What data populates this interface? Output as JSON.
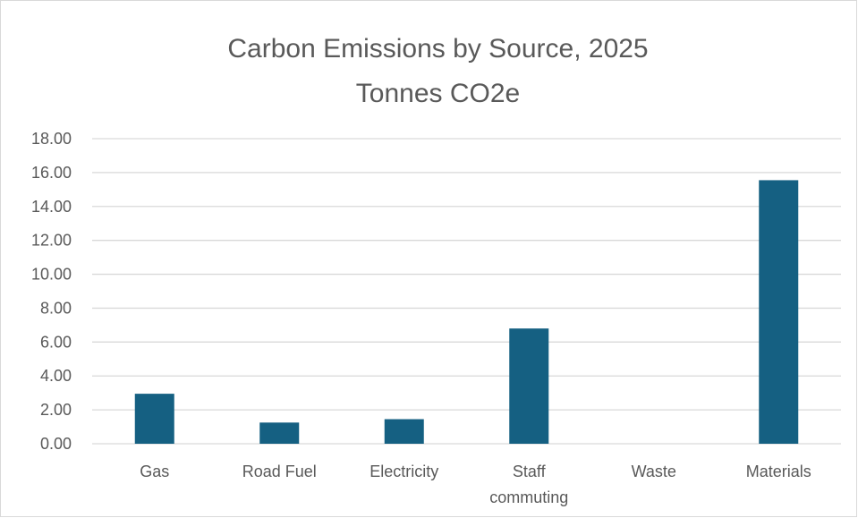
{
  "chart_data": {
    "type": "bar",
    "title": "Carbon Emissions by Source, 2025",
    "subtitle": "Tonnes CO2e",
    "categories": [
      "Gas",
      "Road Fuel",
      "Electricity",
      "Staff commuting",
      "Waste",
      "Materials"
    ],
    "category_lines": [
      [
        "Gas"
      ],
      [
        "Road Fuel"
      ],
      [
        "Electricity"
      ],
      [
        "Staff",
        "commuting"
      ],
      [
        "Waste"
      ],
      [
        "Materials"
      ]
    ],
    "values": [
      2.95,
      1.25,
      1.45,
      6.8,
      0,
      15.55
    ],
    "ylim": [
      0,
      18
    ],
    "yticks": [
      "0.00",
      "2.00",
      "4.00",
      "6.00",
      "8.00",
      "10.00",
      "12.00",
      "14.00",
      "16.00",
      "18.00"
    ],
    "grid": true,
    "bar_color": "#156082",
    "grid_color": "#d9d9d9"
  }
}
